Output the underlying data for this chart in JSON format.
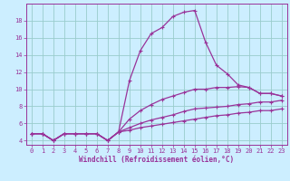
{
  "xlabel": "Windchill (Refroidissement éolien,°C)",
  "background_color": "#cceeff",
  "grid_color": "#99cccc",
  "line_color": "#993399",
  "spine_color": "#993399",
  "x_values": [
    0,
    1,
    2,
    3,
    4,
    5,
    6,
    7,
    8,
    9,
    10,
    11,
    12,
    13,
    14,
    15,
    16,
    17,
    18,
    19,
    20,
    21,
    22,
    23
  ],
  "series": [
    [
      4.8,
      4.8,
      4.0,
      4.8,
      4.8,
      4.8,
      4.8,
      4.0,
      5.0,
      11.0,
      14.5,
      16.5,
      17.2,
      18.5,
      19.0,
      19.2,
      15.5,
      12.8,
      11.8,
      10.5,
      10.2,
      9.5,
      9.5,
      9.2
    ],
    [
      4.8,
      4.8,
      4.0,
      4.8,
      4.8,
      4.8,
      4.8,
      4.0,
      5.0,
      6.5,
      7.5,
      8.2,
      8.8,
      9.2,
      9.6,
      10.0,
      10.0,
      10.2,
      10.2,
      10.3,
      10.2,
      9.5,
      9.5,
      9.2
    ],
    [
      4.8,
      4.8,
      4.0,
      4.8,
      4.8,
      4.8,
      4.8,
      4.0,
      5.0,
      5.5,
      6.0,
      6.4,
      6.7,
      7.0,
      7.4,
      7.7,
      7.8,
      7.9,
      8.0,
      8.2,
      8.3,
      8.5,
      8.5,
      8.7
    ],
    [
      4.8,
      4.8,
      4.0,
      4.8,
      4.8,
      4.8,
      4.8,
      4.0,
      5.0,
      5.2,
      5.5,
      5.7,
      5.9,
      6.1,
      6.3,
      6.5,
      6.7,
      6.9,
      7.0,
      7.2,
      7.3,
      7.5,
      7.5,
      7.7
    ]
  ],
  "ylim": [
    3.5,
    20.0
  ],
  "xlim": [
    -0.5,
    23.5
  ],
  "yticks": [
    4,
    6,
    8,
    10,
    12,
    14,
    16,
    18
  ],
  "xticks": [
    0,
    1,
    2,
    3,
    4,
    5,
    6,
    7,
    8,
    9,
    10,
    11,
    12,
    13,
    14,
    15,
    16,
    17,
    18,
    19,
    20,
    21,
    22,
    23
  ],
  "tick_fontsize": 5.0,
  "xlabel_fontsize": 5.5,
  "linewidth": 0.9,
  "markersize": 2.5
}
